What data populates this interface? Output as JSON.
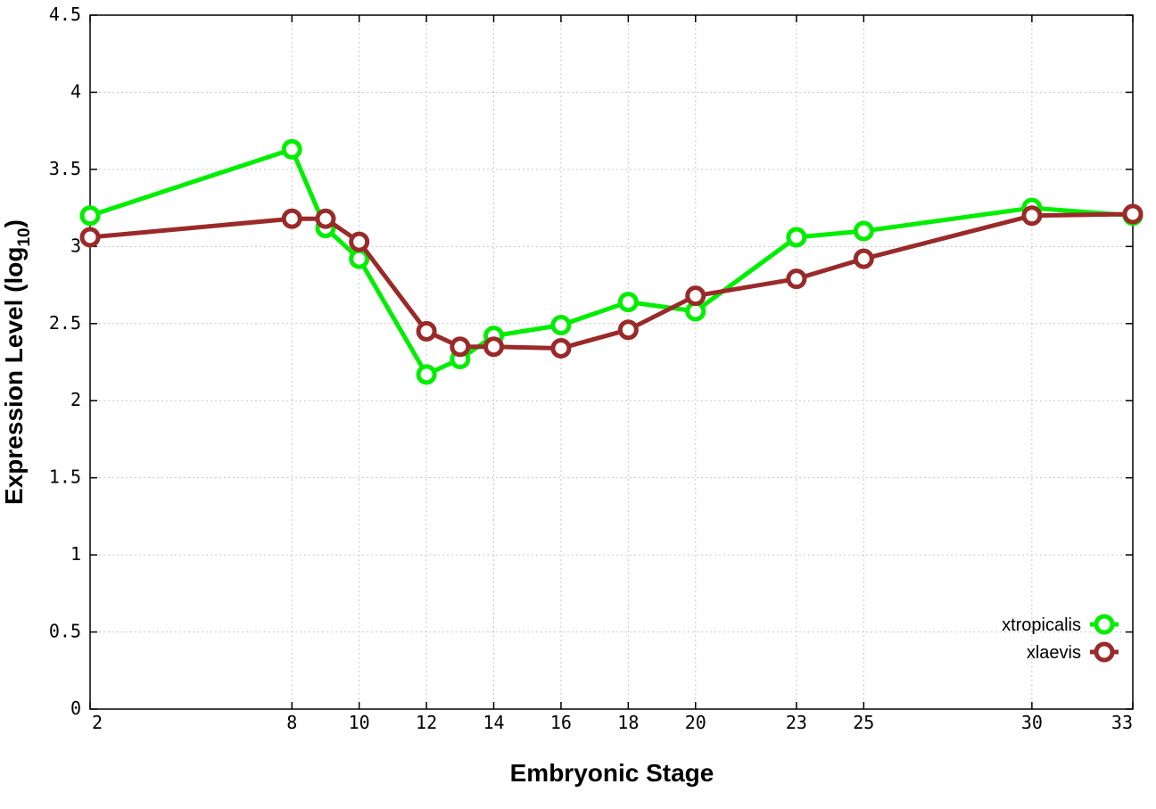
{
  "chart_data": {
    "type": "line",
    "title": "",
    "xlabel": "Embryonic Stage",
    "ylabel": "Expression Level (log",
    "ylabel_subscript": "10",
    "ylabel_close": ")",
    "x_ticks": [
      "2",
      "8",
      "10",
      "12",
      "14",
      "16",
      "18",
      "20",
      "23",
      "25",
      "30",
      "33"
    ],
    "x_tick_values": [
      2,
      8,
      10,
      12,
      14,
      16,
      18,
      20,
      23,
      25,
      30,
      33
    ],
    "y_ticks": [
      "0",
      "0.5",
      "1",
      "1.5",
      "2",
      "2.5",
      "3",
      "3.5",
      "4",
      "4.5"
    ],
    "y_tick_values": [
      0,
      0.5,
      1,
      1.5,
      2,
      2.5,
      3,
      3.5,
      4,
      4.5
    ],
    "xlim": [
      2,
      33
    ],
    "ylim": [
      0,
      4.5
    ],
    "grid": true,
    "legend_position": "bottom-right",
    "series": [
      {
        "name": "xtropicalis",
        "color": "#00ee00",
        "x": [
          2,
          8,
          9,
          10,
          12,
          13,
          14,
          16,
          18,
          20,
          23,
          25,
          30,
          33
        ],
        "y": [
          3.2,
          3.63,
          3.12,
          2.92,
          2.17,
          2.27,
          2.42,
          2.49,
          2.64,
          2.58,
          3.06,
          3.1,
          3.25,
          3.2
        ]
      },
      {
        "name": "xlaevis",
        "color": "#9a2a2a",
        "x": [
          2,
          8,
          9,
          10,
          12,
          13,
          14,
          16,
          18,
          20,
          23,
          25,
          30,
          33
        ],
        "y": [
          3.06,
          3.18,
          3.18,
          3.03,
          2.45,
          2.35,
          2.35,
          2.34,
          2.46,
          2.68,
          2.79,
          2.92,
          3.2,
          3.21
        ]
      }
    ]
  }
}
